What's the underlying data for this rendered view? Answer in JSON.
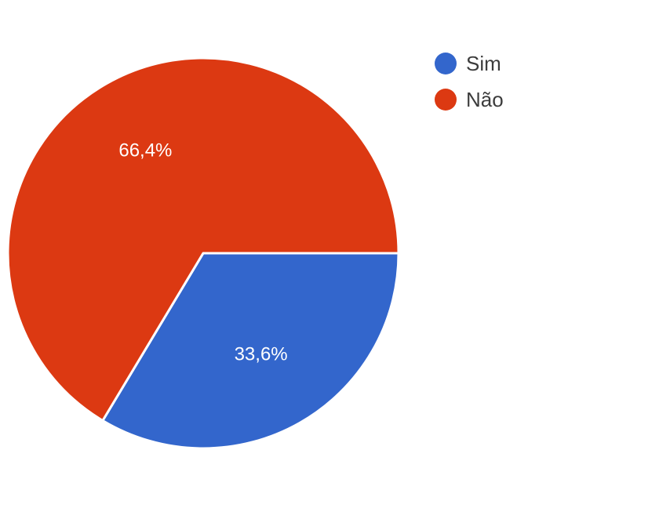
{
  "chart_data": {
    "type": "pie",
    "categories": [
      "Sim",
      "Não"
    ],
    "values": [
      33.6,
      66.4
    ],
    "labels": [
      "33,6%",
      "66,4%"
    ],
    "colors": [
      "#3366cc",
      "#dc3912"
    ],
    "legend_position": "top-right"
  },
  "legend": {
    "items": [
      {
        "label": "Sim",
        "color": "#3366cc"
      },
      {
        "label": "Não",
        "color": "#dc3912"
      }
    ]
  }
}
